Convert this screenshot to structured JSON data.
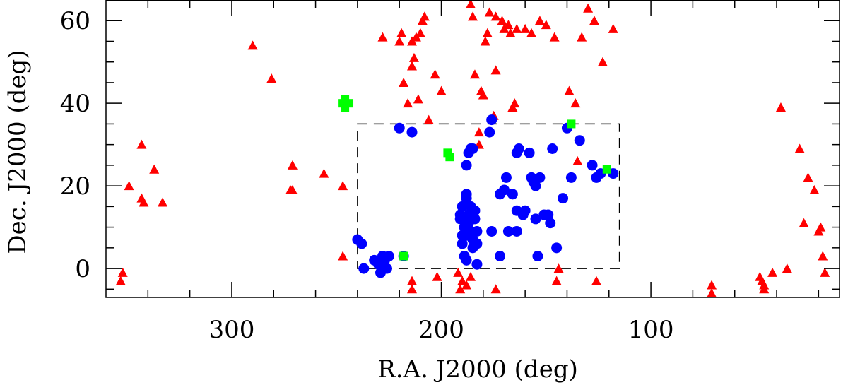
{
  "chart_data": {
    "type": "scatter",
    "xlabel": "R.A. J2000 (deg)",
    "ylabel": "Dec. J2000 (deg)",
    "xlim": [
      360,
      10
    ],
    "ylim": [
      -7,
      65
    ],
    "x_ticks": [
      300,
      200,
      100
    ],
    "y_ticks": [
      0,
      20,
      40,
      60
    ],
    "grid": false,
    "box": {
      "x": [
        240,
        115
      ],
      "y": [
        0,
        35
      ],
      "style": "dashed"
    },
    "series": [
      {
        "name": "triangles",
        "marker": "triangle",
        "color": "#ff0000",
        "points": [
          [
            352,
            -1
          ],
          [
            353,
            -3
          ],
          [
            349,
            20
          ],
          [
            343,
            30
          ],
          [
            343,
            17
          ],
          [
            342,
            16
          ],
          [
            337,
            24
          ],
          [
            333,
            16
          ],
          [
            290,
            54
          ],
          [
            281,
            46
          ],
          [
            271,
            25
          ],
          [
            272,
            19
          ],
          [
            271,
            19
          ],
          [
            256,
            23
          ],
          [
            247,
            20
          ],
          [
            247,
            3
          ],
          [
            228,
            56
          ],
          [
            220,
            55
          ],
          [
            218,
            45
          ],
          [
            216,
            40
          ],
          [
            219,
            57
          ],
          [
            214,
            49
          ],
          [
            214,
            55
          ],
          [
            213,
            51
          ],
          [
            212,
            56
          ],
          [
            210,
            57
          ],
          [
            211,
            41
          ],
          [
            209,
            60
          ],
          [
            208,
            61
          ],
          [
            206,
            36
          ],
          [
            203,
            47
          ],
          [
            200,
            43
          ],
          [
            214,
            -3
          ],
          [
            214,
            -5
          ],
          [
            202,
            -2
          ],
          [
            192,
            -1
          ],
          [
            190,
            -3
          ],
          [
            191,
            -5
          ],
          [
            188,
            -4
          ],
          [
            186,
            -2
          ],
          [
            186,
            64
          ],
          [
            185,
            61
          ],
          [
            184,
            47
          ],
          [
            181,
            43
          ],
          [
            179,
            55
          ],
          [
            180,
            42
          ],
          [
            178,
            57
          ],
          [
            177,
            62
          ],
          [
            175,
            37
          ],
          [
            174,
            48
          ],
          [
            182,
            33
          ],
          [
            182,
            30
          ],
          [
            174,
            61
          ],
          [
            171,
            60
          ],
          [
            170,
            58
          ],
          [
            168,
            59
          ],
          [
            166,
            39
          ],
          [
            165,
            40
          ],
          [
            167,
            57
          ],
          [
            164,
            58
          ],
          [
            160,
            58
          ],
          [
            157,
            57
          ],
          [
            174,
            -5
          ],
          [
            153,
            60
          ],
          [
            150,
            59
          ],
          [
            146,
            56
          ],
          [
            145,
            -3
          ],
          [
            144,
            0
          ],
          [
            139,
            43
          ],
          [
            136,
            40
          ],
          [
            135,
            26
          ],
          [
            133,
            56
          ],
          [
            130,
            63
          ],
          [
            127,
            60
          ],
          [
            126,
            -3
          ],
          [
            123,
            50
          ],
          [
            118,
            58
          ],
          [
            188,
            12
          ],
          [
            71,
            -4
          ],
          [
            71,
            -6
          ],
          [
            48,
            -2
          ],
          [
            47,
            -3
          ],
          [
            46,
            -4
          ],
          [
            46,
            -5
          ],
          [
            42,
            -1
          ],
          [
            38,
            39
          ],
          [
            35,
            0
          ],
          [
            29,
            29
          ],
          [
            27,
            11
          ],
          [
            25,
            22
          ],
          [
            22,
            19
          ],
          [
            20,
            9
          ],
          [
            19,
            10
          ],
          [
            18,
            3
          ],
          [
            17,
            -1
          ]
        ]
      },
      {
        "name": "circles",
        "marker": "circle",
        "color": "#0000ff",
        "points": [
          [
            240,
            7
          ],
          [
            238,
            6
          ],
          [
            237,
            0
          ],
          [
            232,
            2
          ],
          [
            230,
            1
          ],
          [
            229,
            -1
          ],
          [
            228,
            3
          ],
          [
            227,
            2
          ],
          [
            226,
            0
          ],
          [
            225,
            3
          ],
          [
            220,
            34
          ],
          [
            218,
            3
          ],
          [
            214,
            33
          ],
          [
            188,
            25
          ],
          [
            187,
            28
          ],
          [
            186,
            29
          ],
          [
            185,
            29
          ],
          [
            191,
            13
          ],
          [
            190,
            15
          ],
          [
            189,
            10
          ],
          [
            188,
            8
          ],
          [
            188,
            17
          ],
          [
            188,
            18
          ],
          [
            187,
            13
          ],
          [
            187,
            11
          ],
          [
            186,
            15
          ],
          [
            186,
            9
          ],
          [
            185,
            7
          ],
          [
            185,
            5
          ],
          [
            184,
            14
          ],
          [
            184,
            12
          ],
          [
            183,
            9
          ],
          [
            183,
            6
          ],
          [
            190,
            6
          ],
          [
            189,
            3
          ],
          [
            188,
            2
          ],
          [
            190,
            8
          ],
          [
            191,
            12
          ],
          [
            183,
            1
          ],
          [
            177,
            33
          ],
          [
            176,
            36
          ],
          [
            176,
            9
          ],
          [
            172,
            3
          ],
          [
            172,
            18
          ],
          [
            170,
            19
          ],
          [
            169,
            22
          ],
          [
            168,
            9
          ],
          [
            166,
            18
          ],
          [
            164,
            9
          ],
          [
            164,
            14
          ],
          [
            164,
            28
          ],
          [
            163,
            29
          ],
          [
            161,
            13
          ],
          [
            160,
            14
          ],
          [
            158,
            28
          ],
          [
            157,
            22
          ],
          [
            156,
            21
          ],
          [
            155,
            12
          ],
          [
            155,
            20
          ],
          [
            154,
            3
          ],
          [
            153,
            22
          ],
          [
            151,
            13
          ],
          [
            149,
            13
          ],
          [
            148,
            11
          ],
          [
            147,
            29
          ],
          [
            145,
            5
          ],
          [
            142,
            17
          ],
          [
            140,
            34
          ],
          [
            138,
            22
          ],
          [
            134,
            31
          ],
          [
            128,
            25
          ],
          [
            126,
            22
          ],
          [
            124,
            23
          ],
          [
            118,
            23
          ]
        ]
      },
      {
        "name": "squares",
        "marker": "square",
        "color": "#00ff00",
        "points": [
          [
            247,
            40
          ],
          [
            246,
            39
          ],
          [
            246,
            41
          ],
          [
            244,
            40
          ],
          [
            197,
            28
          ],
          [
            196,
            27
          ],
          [
            218,
            3
          ],
          [
            138,
            35
          ],
          [
            121,
            24
          ]
        ]
      }
    ]
  }
}
